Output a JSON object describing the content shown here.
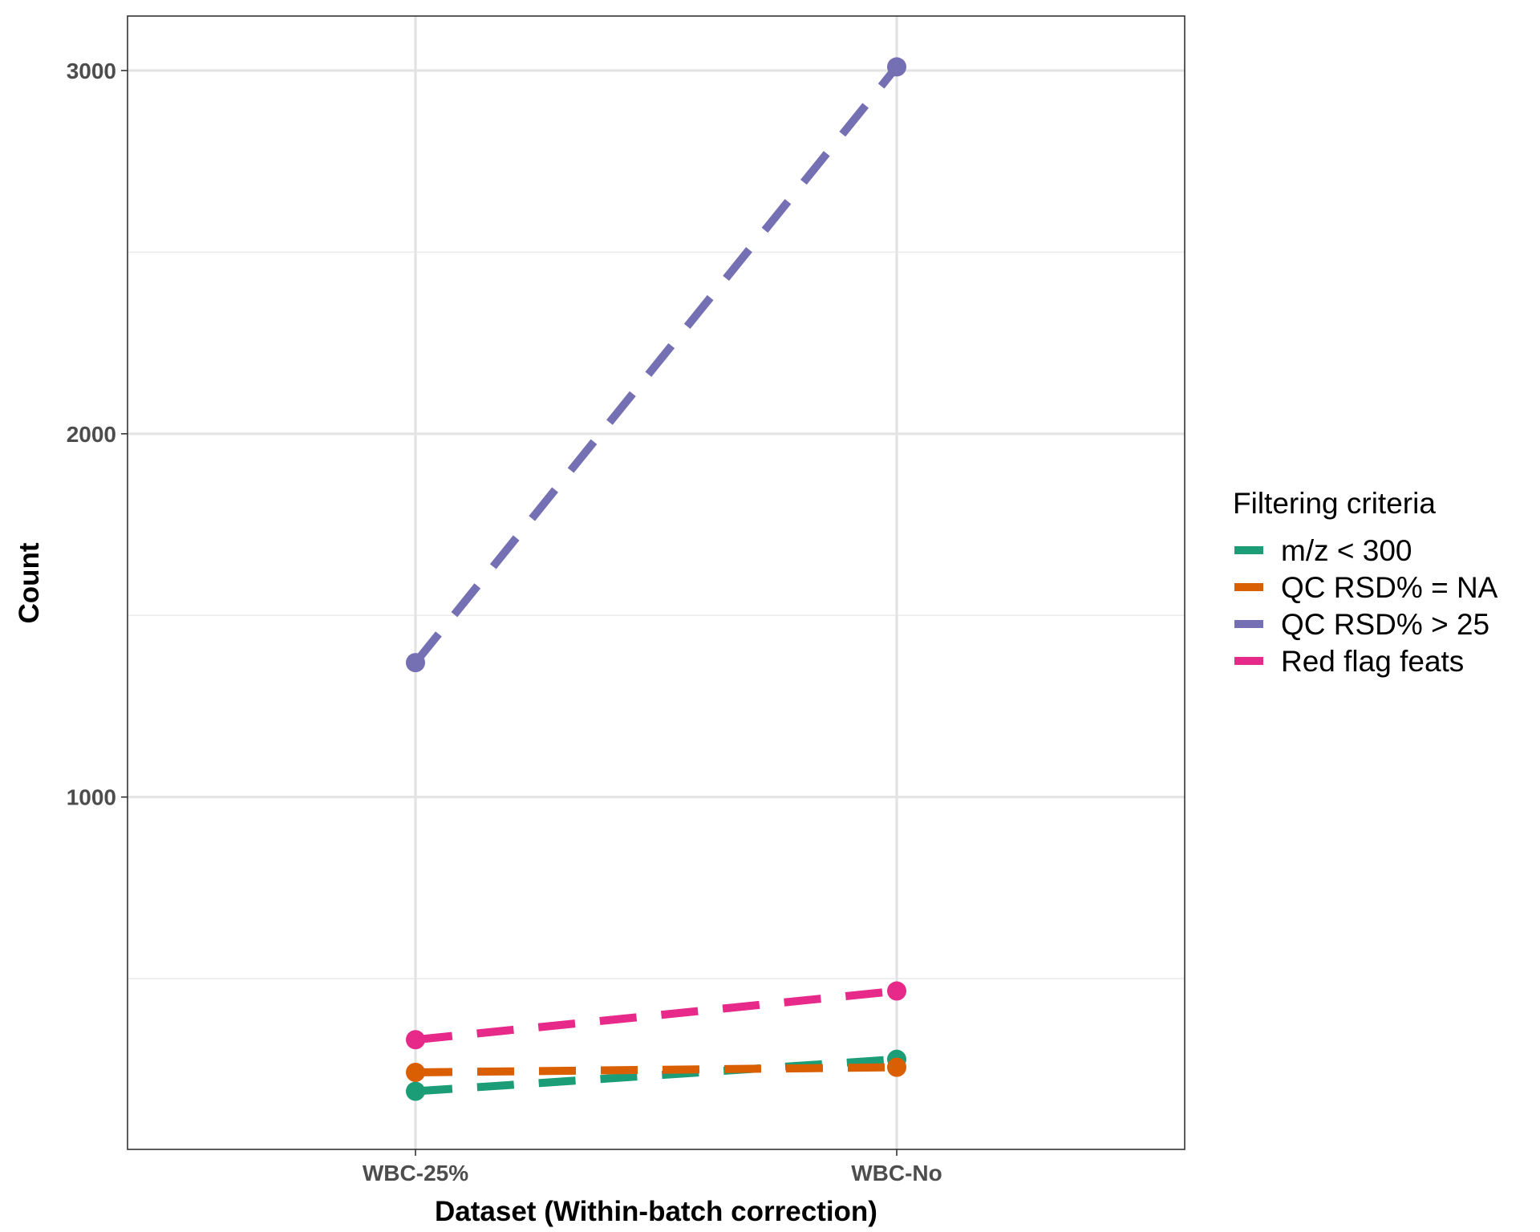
{
  "chart_data": {
    "type": "line",
    "title": "",
    "xlabel": "Dataset (Within-batch correction)",
    "ylabel": "Count",
    "categories": [
      "WBC-25%",
      "WBC-No"
    ],
    "y_ticks": [
      1000,
      2000,
      3000
    ],
    "y_tick_labels": [
      "1000",
      "2000",
      "3000"
    ],
    "ylim": [
      30,
      3150
    ],
    "grid": true,
    "line_style": "dashed",
    "legend": {
      "title": "Filtering criteria",
      "position": "right"
    },
    "series": [
      {
        "name": "m/z < 300",
        "values": [
          190,
          278
        ],
        "color": "#1b9e77"
      },
      {
        "name": "QC RSD% = NA",
        "values": [
          242,
          256
        ],
        "color": "#d95f02"
      },
      {
        "name": "QC RSD% > 25",
        "values": [
          1370,
          3010
        ],
        "color": "#7570b3"
      },
      {
        "name": "Red flag feats",
        "values": [
          332,
          466
        ],
        "color": "#e7298a"
      }
    ]
  }
}
